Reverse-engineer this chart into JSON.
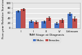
{
  "categories": [
    "I",
    "II",
    "III",
    "IV",
    "Unknown"
  ],
  "males": [
    68,
    28,
    26,
    20,
    57
  ],
  "females": [
    75,
    25,
    40,
    32,
    38
  ],
  "males_err": [
    4,
    4,
    4,
    4,
    6
  ],
  "females_err": [
    5,
    5,
    7,
    7,
    7
  ],
  "male_color": "#4472c4",
  "female_color": "#c0504d",
  "ylabel": "Five-year Relative Survival (%)",
  "xlabel": "TNM Stage at Diagnosis",
  "legend_males": "Males",
  "legend_females": "Females",
  "ylim": [
    0,
    100
  ],
  "yticks": [
    0,
    20,
    40,
    60,
    80,
    100
  ],
  "bar_width": 0.38,
  "background_color": "#e8e8e8",
  "plot_bg_color": "#e8e8e8",
  "grid_color": "#ffffff",
  "label_fontsize": 3.2,
  "tick_fontsize": 2.8,
  "legend_fontsize": 2.8
}
